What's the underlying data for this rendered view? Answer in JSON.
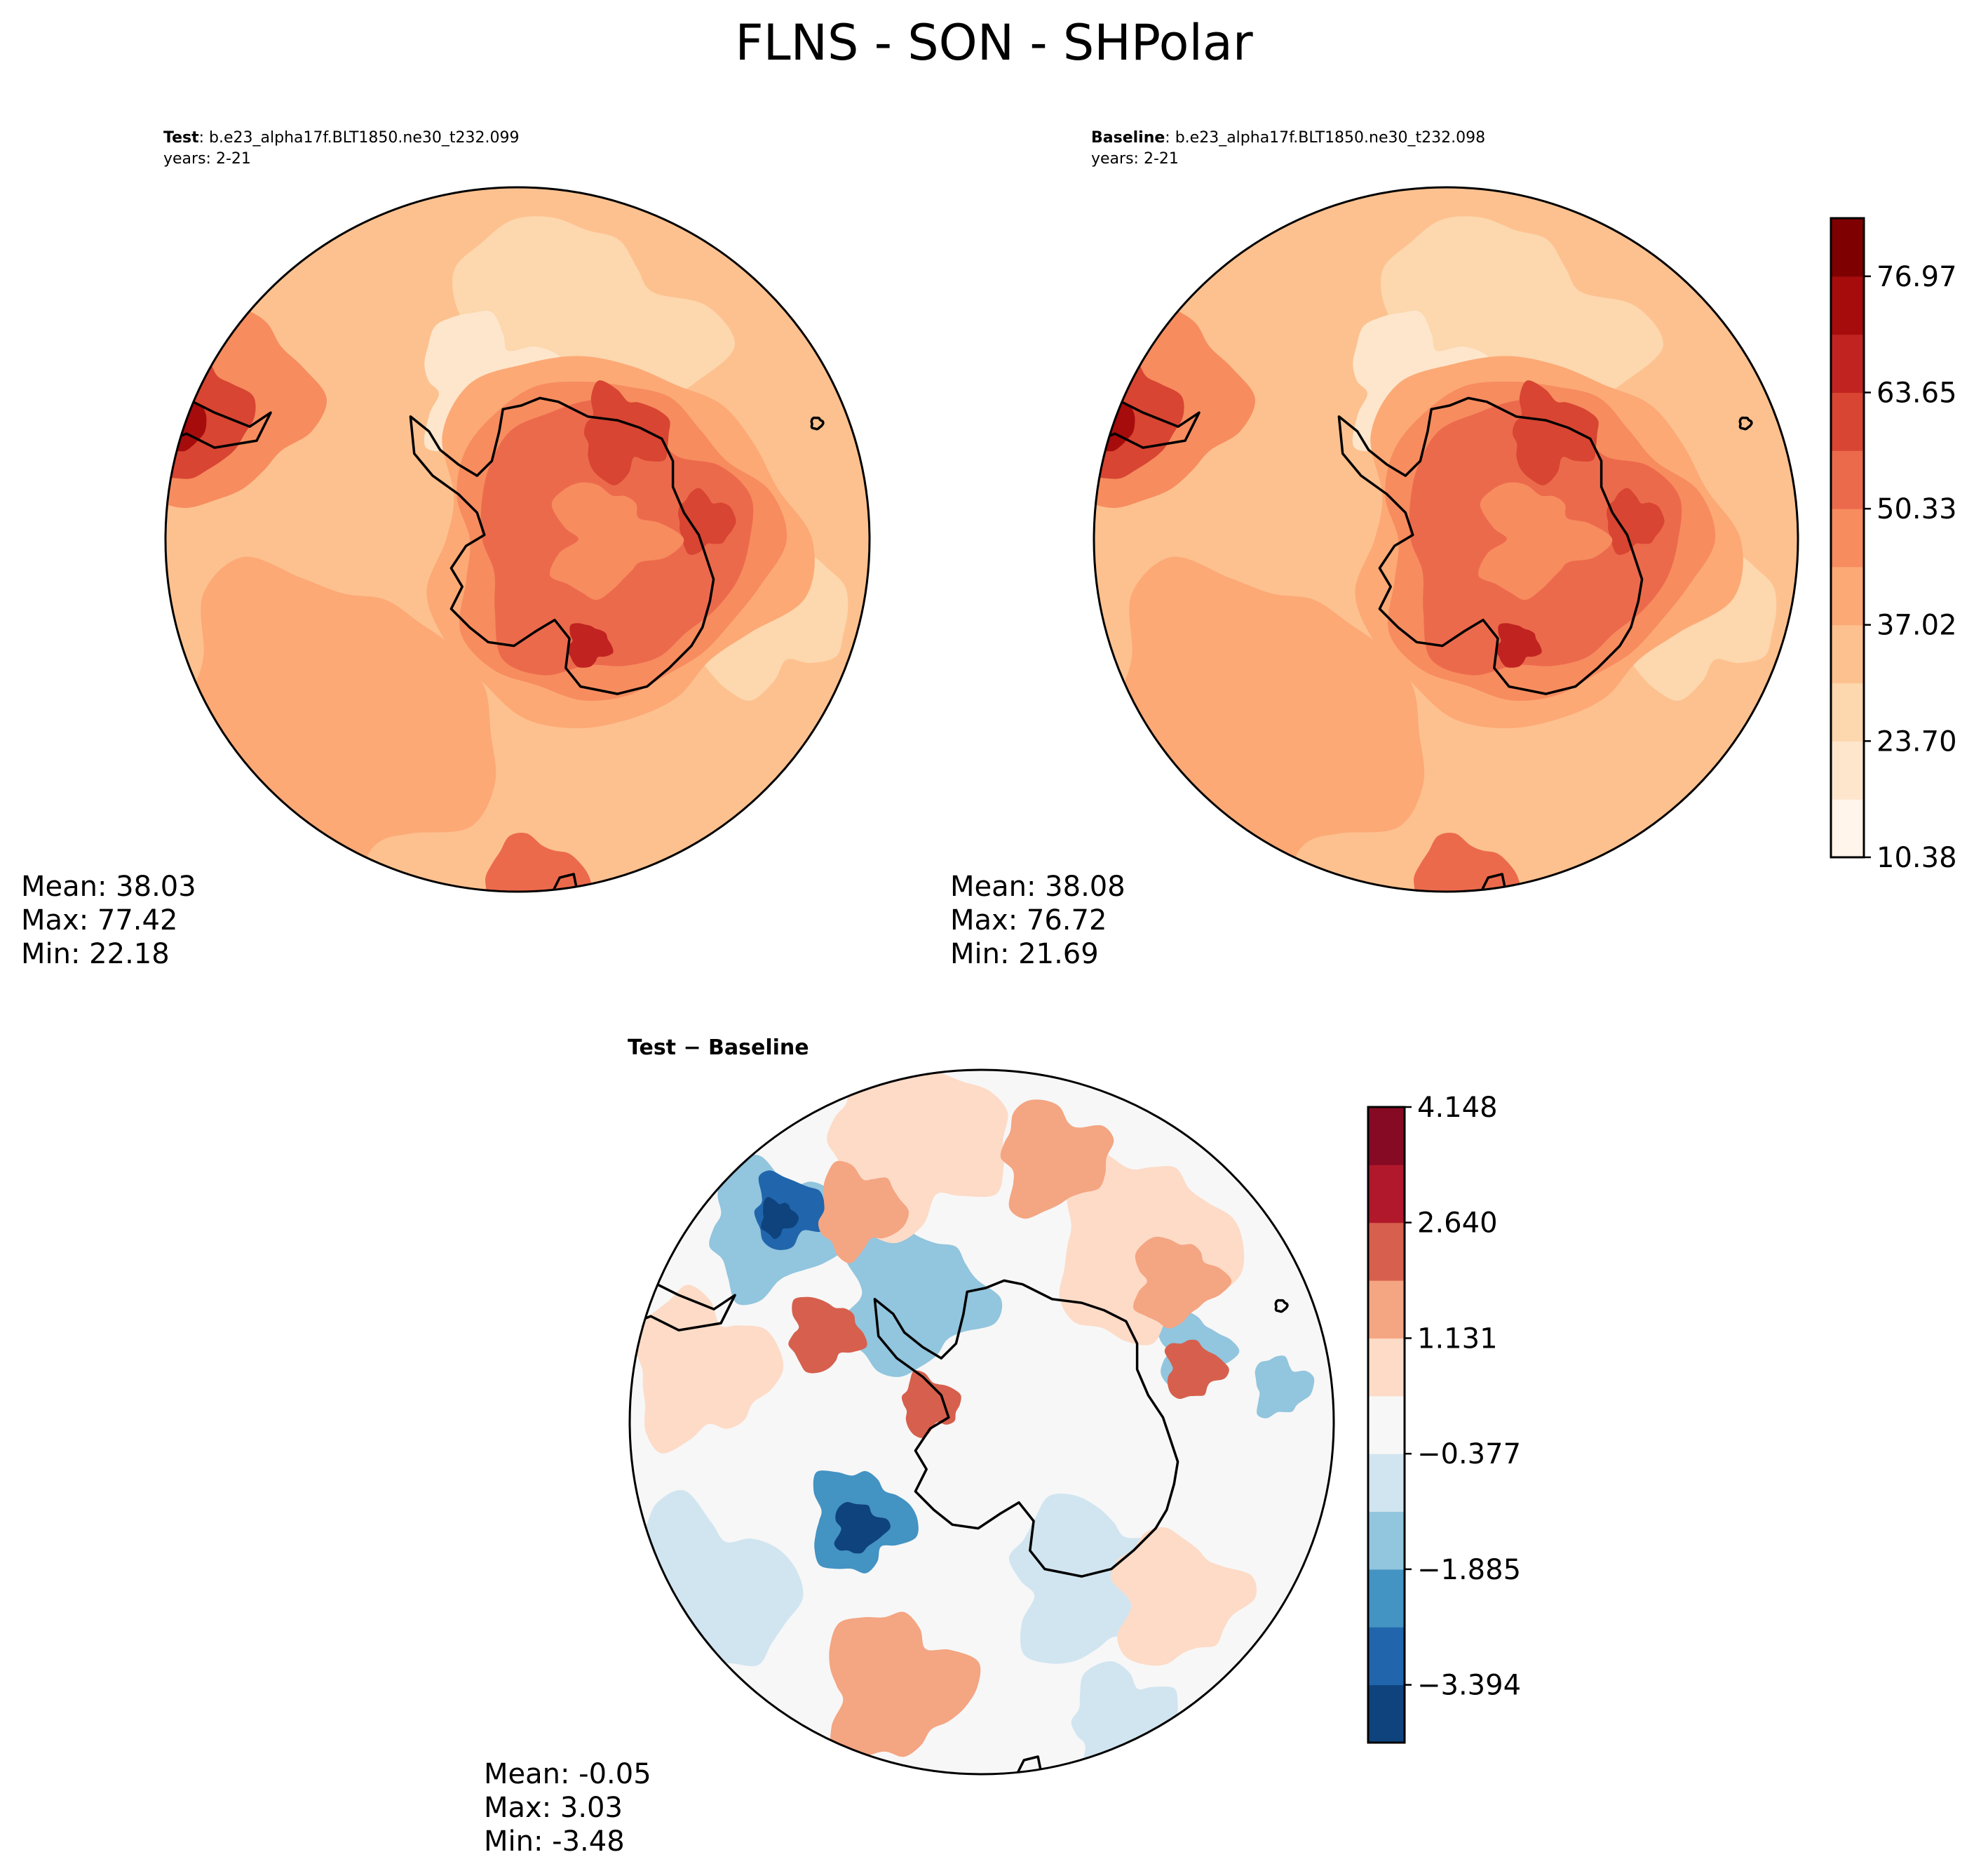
{
  "figure": {
    "title": "FLNS - SON - SHPolar"
  },
  "panels": {
    "test": {
      "label": "Test",
      "case": ": b.e23_alpha17f.BLT1850.ne30_t232.099",
      "years": "years: 2-21",
      "stats": {
        "mean": "Mean: 38.03",
        "max": "Max: 77.42",
        "min": "Min: 22.18"
      }
    },
    "baseline": {
      "label": "Baseline",
      "case": ": b.e23_alpha17f.BLT1850.ne30_t232.098",
      "years": "years: 2-21",
      "stats": {
        "mean": "Mean: 38.08",
        "max": "Max: 76.72",
        "min": "Min: 21.69"
      }
    },
    "diff": {
      "label": "Test − Baseline",
      "stats": {
        "mean": "Mean: -0.05",
        "max": "Max:  3.03",
        "min": "Min: -3.48"
      }
    }
  },
  "chart_data": [
    {
      "type": "heatmap",
      "name": "Test",
      "projection": "south polar stereographic",
      "variable": "FLNS",
      "season": "SON",
      "mean": 38.03,
      "max": 77.42,
      "min": 22.18,
      "colormap": "OrRd-like sequential",
      "colorbar": {
        "ticks": [
          "10.38",
          "23.70",
          "37.02",
          "50.33",
          "63.65",
          "76.97"
        ],
        "range": [
          10.38,
          83.63
        ],
        "levels": 11,
        "colors": [
          "#fff5eb",
          "#fde6cc",
          "#fdd7ad",
          "#fdc18f",
          "#fca976",
          "#f78c5f",
          "#ec6a4c",
          "#d84532",
          "#c12420",
          "#a70c0d",
          "#7f0000"
        ]
      }
    },
    {
      "type": "heatmap",
      "name": "Baseline",
      "projection": "south polar stereographic",
      "variable": "FLNS",
      "season": "SON",
      "mean": 38.08,
      "max": 76.72,
      "min": 21.69,
      "colorbar": {
        "ticks": [
          "10.38",
          "23.70",
          "37.02",
          "50.33",
          "63.65",
          "76.97"
        ],
        "range": [
          10.38,
          83.63
        ],
        "levels": 11,
        "colors": [
          "#fff5eb",
          "#fde6cc",
          "#fdd7ad",
          "#fdc18f",
          "#fca976",
          "#f78c5f",
          "#ec6a4c",
          "#d84532",
          "#c12420",
          "#a70c0d",
          "#7f0000"
        ]
      }
    },
    {
      "type": "heatmap",
      "name": "Test - Baseline",
      "projection": "south polar stereographic",
      "mean": -0.05,
      "max": 3.03,
      "min": -3.48,
      "colormap": "RdBu_r diverging",
      "colorbar": {
        "ticks": [
          "4.148",
          "2.640",
          "1.131",
          "−0.377",
          "−1.885",
          "−3.394"
        ],
        "range": [
          -4.148,
          4.148
        ],
        "levels": 11,
        "colors": [
          "#0f437d",
          "#2166ac",
          "#4393c3",
          "#92c5de",
          "#d1e5f0",
          "#f7f7f7",
          "#fddbc7",
          "#f4a582",
          "#d6604d",
          "#b2182b",
          "#870a24"
        ]
      }
    }
  ],
  "palette": {
    "seq": [
      "#fff5eb",
      "#fde6cc",
      "#fdd7ad",
      "#fdc18f",
      "#fca976",
      "#f78c5f",
      "#ec6a4c",
      "#d84532",
      "#c12420",
      "#a70c0d",
      "#7f0000"
    ],
    "div": [
      "#0f437d",
      "#2166ac",
      "#4393c3",
      "#92c5de",
      "#d1e5f0",
      "#f7f7f7",
      "#fddbc7",
      "#f4a582",
      "#d6604d",
      "#b2182b",
      "#870a24"
    ]
  }
}
